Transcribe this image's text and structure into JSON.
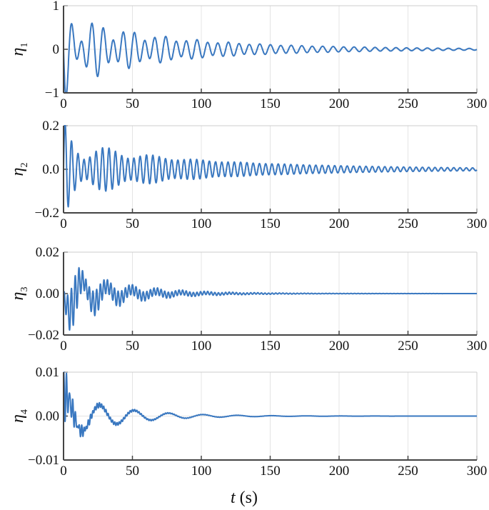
{
  "chart_data": [
    {
      "type": "line",
      "ylabel": "η",
      "ylabel_sub": "1",
      "xlim": [
        0,
        300
      ],
      "ylim": [
        -1,
        1
      ],
      "xticks": [
        "0",
        "50",
        "100",
        "150",
        "200",
        "250",
        "300"
      ],
      "yticks": [
        "−1",
        "0",
        "1"
      ],
      "ytick_values": [
        -1,
        0,
        1
      ],
      "model": {
        "kind": "sum_of_damped_sinusoids",
        "components": [
          {
            "amp": -0.55,
            "period": 7.6,
            "tau": 90,
            "phase": 0
          },
          {
            "amp": -0.38,
            "period": 11.1,
            "tau": 40,
            "phase": 0
          },
          {
            "amp": -0.35,
            "period": 6.0,
            "tau": 6,
            "phase": 0
          }
        ]
      },
      "color": "#3a78c0"
    },
    {
      "type": "line",
      "ylabel": "η",
      "ylabel_sub": "2",
      "xlim": [
        0,
        300
      ],
      "ylim": [
        -0.2,
        0.2
      ],
      "xticks": [
        "0",
        "50",
        "100",
        "150",
        "200",
        "250",
        "300"
      ],
      "yticks": [
        "−0.2",
        "0.0",
        "0.2"
      ],
      "ytick_values": [
        -0.2,
        0,
        0.2
      ],
      "model": {
        "kind": "sum_of_damped_sinusoids",
        "components": [
          {
            "amp": 0.1,
            "period": 4.55,
            "tau": 110,
            "phase": 0
          },
          {
            "amp": 0.06,
            "period": 5.3,
            "tau": 35,
            "phase": 0
          },
          {
            "amp": 0.08,
            "period": 4.0,
            "tau": 5,
            "phase": 0
          }
        ]
      },
      "color": "#3a78c0"
    },
    {
      "type": "line",
      "ylabel": "η",
      "ylabel_sub": "3",
      "xlim": [
        0,
        300
      ],
      "ylim": [
        -0.02,
        0.02
      ],
      "xticks": [
        "0",
        "50",
        "100",
        "150",
        "200",
        "250",
        "300"
      ],
      "yticks": [
        "−0.02",
        "0.00",
        "0.02"
      ],
      "ytick_values": [
        -0.02,
        0,
        0.02
      ],
      "model": {
        "kind": "sum_of_damped_sinusoids",
        "components": [
          {
            "amp": -0.01,
            "period": 18,
            "tau": 30,
            "phase": 0
          },
          {
            "amp": 0.008,
            "period": 2.6,
            "tau": 45,
            "phase": 0
          },
          {
            "amp": -0.006,
            "period": 3.1,
            "tau": 15,
            "phase": 0
          }
        ]
      },
      "color": "#3a78c0"
    },
    {
      "type": "line",
      "ylabel": "η",
      "ylabel_sub": "4",
      "xlim": [
        0,
        300
      ],
      "ylim": [
        -0.01,
        0.01
      ],
      "xticks": [
        "0",
        "50",
        "100",
        "150",
        "200",
        "250",
        "300"
      ],
      "yticks": [
        "−0.01",
        "0.00",
        "0.01"
      ],
      "ytick_values": [
        -0.01,
        0,
        0.01
      ],
      "model": {
        "kind": "sum_of_damped_sinusoids",
        "components": [
          {
            "amp": 0.005,
            "period": 25,
            "tau": 38,
            "phase": 1.2
          },
          {
            "amp": 0.006,
            "period": 2.2,
            "tau": 6,
            "phase": 1.57
          },
          {
            "amp": 0.0012,
            "period": 1.6,
            "tau": 30,
            "phase": 0
          }
        ]
      },
      "color": "#3a78c0"
    }
  ],
  "xlabel_var": "t",
  "xlabel_unit": "(s)"
}
